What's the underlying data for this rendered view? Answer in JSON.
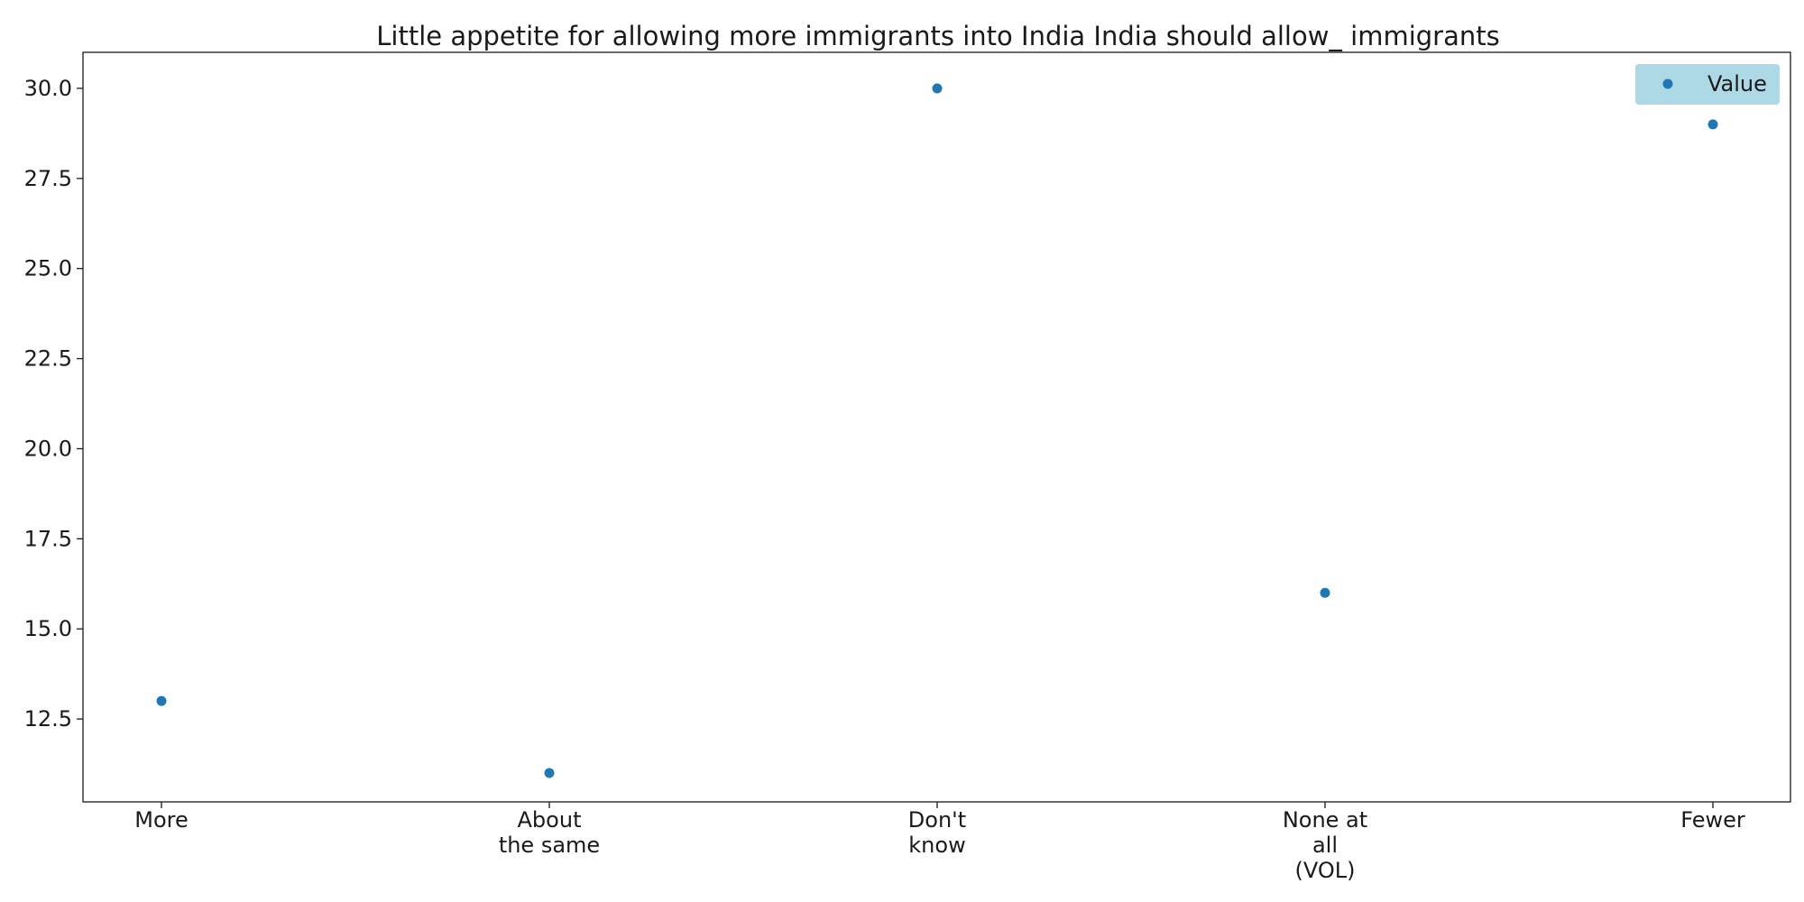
{
  "chart_data": {
    "type": "scatter",
    "title": "Little appetite for allowing more immigrants into India India should allow_ immigrants",
    "categories": [
      [
        "More"
      ],
      [
        "About",
        "the same"
      ],
      [
        "Don't",
        "know"
      ],
      [
        "None at",
        "all",
        "(VOL)"
      ],
      [
        "Fewer"
      ]
    ],
    "series": [
      {
        "name": "Value",
        "values": [
          13,
          11,
          30,
          16,
          29
        ]
      }
    ],
    "ylim": [
      10.2,
      31
    ],
    "yticks": [
      12.5,
      15.0,
      17.5,
      20.0,
      22.5,
      25.0,
      27.5,
      30.0
    ],
    "ytick_labels": [
      "12.5",
      "15.0",
      "17.5",
      "20.0",
      "22.5",
      "25.0",
      "27.5",
      "30.0"
    ],
    "grid": false,
    "legend_position": "top-right",
    "colors": {
      "marker": "#1f77b4",
      "legend_bg": "#add8e6",
      "axis": "#1a1a1a"
    }
  }
}
